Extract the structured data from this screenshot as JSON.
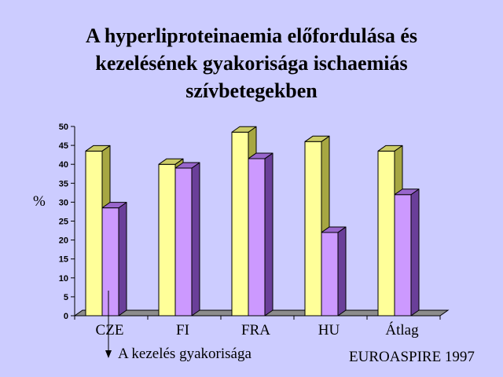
{
  "title_lines": [
    "A hyperliproteinaemia előfordulása és",
    "kezelésének gyakorisága ischaemiás",
    "szívbetegekben"
  ],
  "ylabel": "%",
  "annotation": "A kezelés gyakorisága",
  "source": "EUROASPIRE 1997",
  "colors": {
    "series1_front": "#ffff99",
    "series1_side": "#a7a742",
    "series1_top": "#cccc66",
    "series2_front": "#cc99ff",
    "series2_side": "#6a3f99",
    "series2_top": "#9966cc",
    "floor": "#8c8c8c"
  },
  "chart_data": {
    "type": "bar",
    "categories": [
      "CZE",
      "FI",
      "FRA",
      "HU",
      "Átlag"
    ],
    "series": [
      {
        "values": [
          43.5,
          40,
          48.5,
          46,
          43.5
        ]
      },
      {
        "values": [
          28.5,
          39,
          41.5,
          22,
          32
        ]
      }
    ],
    "yticks": [
      "0",
      "5",
      "10",
      "15",
      "20",
      "25",
      "30",
      "35",
      "40",
      "45",
      "50"
    ],
    "ylim": [
      0,
      50
    ],
    "ylabel": "%",
    "grid": false,
    "legend": "none"
  }
}
